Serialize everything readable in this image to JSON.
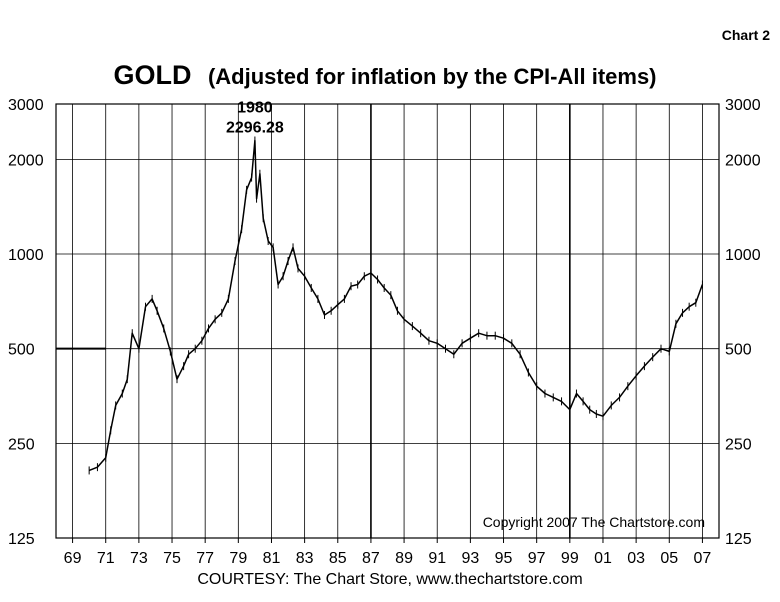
{
  "chart_label": "Chart 2",
  "title_main": "GOLD",
  "title_sub": "(Adjusted for inflation by the CPI-All items)",
  "credit": "COURTESY: The Chart Store, www.thechartstore.com",
  "copyright": "Copyright  2007  The  Chartstore.com",
  "colors": {
    "background": "#ffffff",
    "line": "#000000",
    "grid": "#000000"
  },
  "chart_data": {
    "type": "line",
    "title": "GOLD (Adjusted for inflation by the CPI-All items)",
    "y_scale": "log",
    "ylim": [
      125,
      3000
    ],
    "y_ticks": [
      125,
      250,
      500,
      1000,
      2000,
      3000
    ],
    "y_tick_labels": [
      "125",
      "250",
      "500",
      "1000",
      "2000",
      "3000"
    ],
    "xlim": [
      1968,
      2008
    ],
    "x_ticks": [
      1969,
      1971,
      1973,
      1975,
      1977,
      1979,
      1981,
      1983,
      1985,
      1987,
      1989,
      1991,
      1993,
      1995,
      1997,
      1999,
      2001,
      2003,
      2005,
      2007
    ],
    "x_tick_labels": [
      "69",
      "71",
      "73",
      "75",
      "77",
      "79",
      "81",
      "83",
      "85",
      "87",
      "89",
      "91",
      "93",
      "95",
      "97",
      "99",
      "01",
      "03",
      "05",
      "07"
    ],
    "grid": true,
    "reference_line": {
      "value": 500,
      "x_start": 1968,
      "x_end": 1971
    },
    "annotations": [
      {
        "x": 1980.0,
        "y": 2296.28,
        "lines": [
          "1980",
          "2296.28"
        ]
      }
    ],
    "series": [
      {
        "x": [
          1970.0,
          1970.5,
          1971.0,
          1971.3,
          1971.6,
          1972.0,
          1972.3,
          1972.6,
          1973.0,
          1973.4,
          1973.8,
          1974.1,
          1974.5,
          1974.9,
          1975.3,
          1975.7,
          1976.0,
          1976.4,
          1976.8,
          1977.2,
          1977.6,
          1978.0,
          1978.4,
          1978.8,
          1979.2,
          1979.5,
          1979.8,
          1980.0,
          1980.1,
          1980.3,
          1980.5,
          1980.8,
          1981.1,
          1981.4,
          1981.7,
          1982.0,
          1982.3,
          1982.6,
          1983.0,
          1983.4,
          1983.8,
          1984.2,
          1984.6,
          1985.0,
          1985.4,
          1985.8,
          1986.2,
          1986.6,
          1987.0,
          1987.4,
          1987.8,
          1988.2,
          1988.6,
          1989.0,
          1989.5,
          1990.0,
          1990.5,
          1991.0,
          1991.5,
          1992.0,
          1992.5,
          1993.0,
          1993.5,
          1994.0,
          1994.5,
          1995.0,
          1995.5,
          1996.0,
          1996.5,
          1997.0,
          1997.5,
          1998.0,
          1998.5,
          1999.0,
          1999.4,
          1999.8,
          2000.2,
          2000.6,
          2001.0,
          2001.5,
          2002.0,
          2002.5,
          2003.0,
          2003.5,
          2004.0,
          2004.5,
          2005.0,
          2005.4,
          2005.8,
          2006.2,
          2006.6,
          2007.0
        ],
        "y": [
          205,
          210,
          225,
          275,
          330,
          360,
          400,
          560,
          500,
          680,
          720,
          660,
          580,
          490,
          400,
          440,
          480,
          500,
          530,
          580,
          620,
          650,
          720,
          950,
          1200,
          1600,
          1750,
          2296.28,
          1500,
          1800,
          1300,
          1100,
          1050,
          800,
          850,
          950,
          1050,
          900,
          850,
          780,
          720,
          640,
          660,
          690,
          720,
          790,
          800,
          850,
          870,
          830,
          780,
          740,
          660,
          620,
          590,
          560,
          530,
          520,
          500,
          480,
          520,
          540,
          560,
          550,
          550,
          540,
          520,
          480,
          420,
          380,
          360,
          350,
          340,
          320,
          360,
          340,
          320,
          310,
          305,
          330,
          350,
          380,
          410,
          440,
          470,
          500,
          490,
          600,
          650,
          680,
          700,
          800
        ]
      }
    ]
  }
}
